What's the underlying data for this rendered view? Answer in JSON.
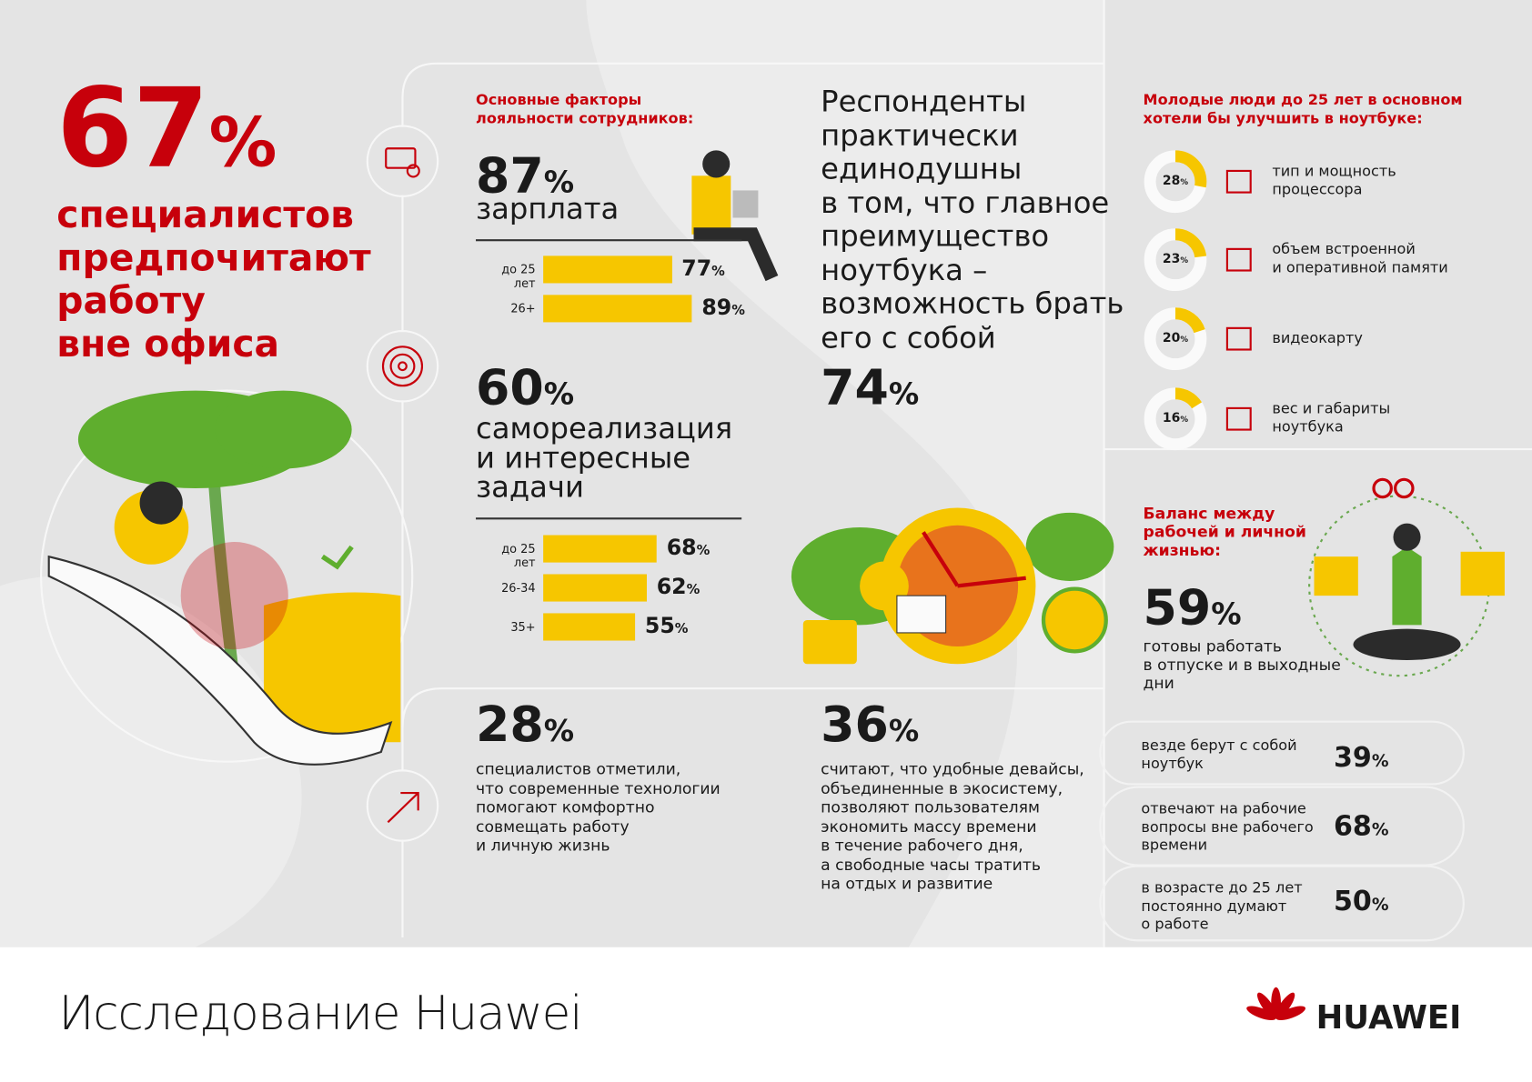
{
  "headline": {
    "value": "67%",
    "text": "специалистов\nпредпочитают\nработу\nвне офиса"
  },
  "loyalty": {
    "title": "Основные факторы\nлояльности сотрудников:",
    "factors": [
      {
        "value": "87%",
        "label": "зарплата",
        "bars": [
          {
            "group": "до 25 лет",
            "value": 77,
            "label": "77%"
          },
          {
            "group": "26+",
            "value": 89,
            "label": "89%"
          }
        ]
      },
      {
        "value": "60%",
        "label": "самореализация\nи интересные\nзадачи",
        "bars": [
          {
            "group": "до 25 лет",
            "value": 68,
            "label": "68%"
          },
          {
            "group": "26-34",
            "value": 62,
            "label": "62%"
          },
          {
            "group": "35+",
            "value": 55,
            "label": "55%"
          }
        ]
      }
    ]
  },
  "portability": {
    "text": "Респонденты\nпрактически\nединодушны\nв том, что главное\nпреимущество\nноутбука –\nвозможность брать\nего с собой",
    "value": "74%"
  },
  "upgrades": {
    "title": "Молодые люди до 25 лет в основном\nхотели бы улучшить в ноутбуке:",
    "items": [
      {
        "value": 28,
        "label": "28%",
        "text": "тип и мощность\nпроцессора"
      },
      {
        "value": 23,
        "label": "23%",
        "text": "объем встроенной\nи оперативной памяти"
      },
      {
        "value": 20,
        "label": "20%",
        "text": "видеокарту"
      },
      {
        "value": 16,
        "label": "16%",
        "text": "вес и габариты\nноутбука"
      }
    ]
  },
  "balance": {
    "title": "Баланс между\nрабочей и личной\nжизнью:",
    "value": "59%",
    "text": "готовы работать\nв отпуске и в выходные\nдни",
    "items": [
      {
        "text": "везде берут с собой\nноутбук",
        "value": "39%"
      },
      {
        "text": "отвечают на рабочие\nвопросы вне рабочего\nвремени",
        "value": "68%"
      },
      {
        "text": "в возрасте до 25 лет\nпостоянно думают\nо работе",
        "value": "50%"
      }
    ]
  },
  "tech": {
    "value": "28%",
    "text": "специалистов отметили,\nчто современные технологии\nпомогают комфортно\nсовмещать работу\nи личную жизнь"
  },
  "ecosystem": {
    "value": "36%",
    "text": "считают, что удобные девайсы,\nобъединенные в экосистему,\nпозволяют пользователям\nэкономить массу времени\nв течение рабочего дня,\nа свободные часы тратить\nна отдых и развитие"
  },
  "footer": {
    "title": "Исследование Huawei",
    "logo": "HUAWEI"
  }
}
